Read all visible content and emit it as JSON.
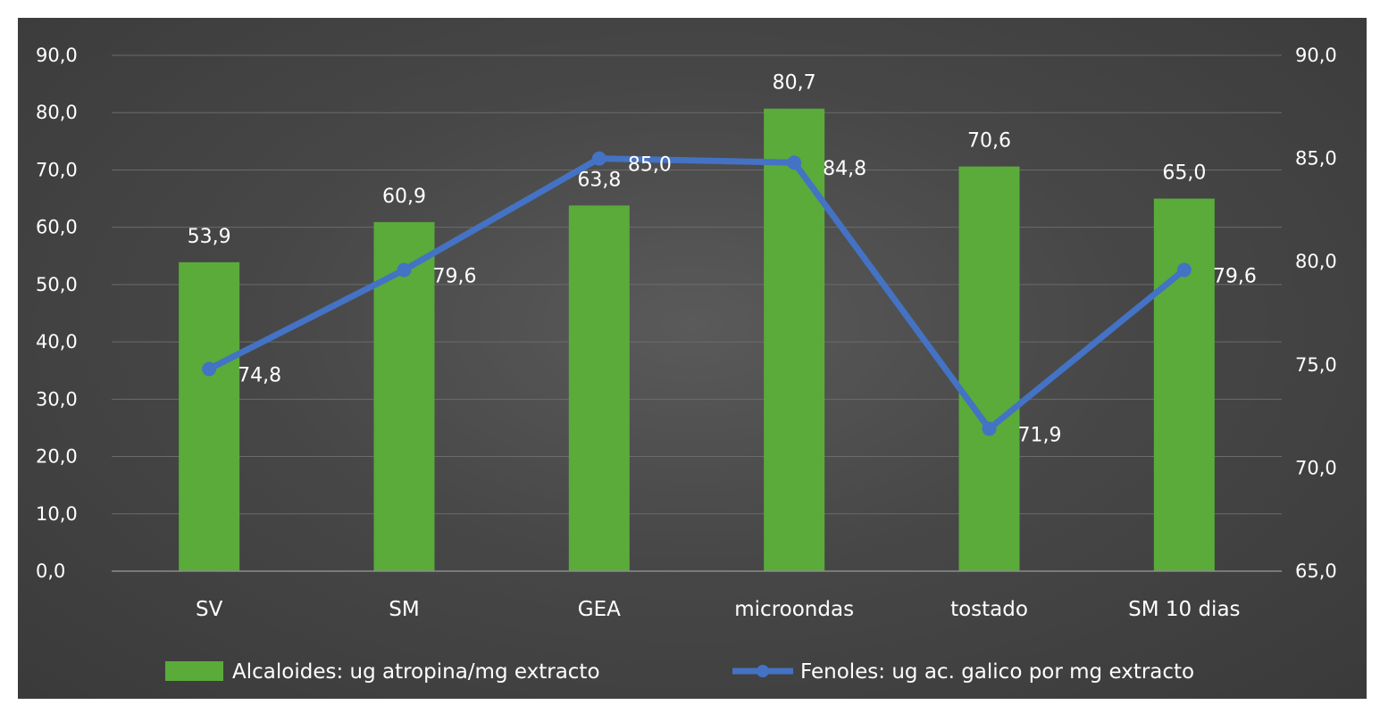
{
  "chart_data": {
    "type": "bar+line",
    "categories": [
      "SV",
      "SM",
      "GEA",
      "microondas",
      "tostado",
      "SM  10 dias"
    ],
    "series": [
      {
        "name": "Alcaloides: ug atropina/mg extracto",
        "type": "bar",
        "axis": "left",
        "color": "#5aab3a",
        "values": [
          53.9,
          60.9,
          63.8,
          80.7,
          70.6,
          65.0
        ],
        "labels": [
          "53,9",
          "60,9",
          "63,8",
          "80,7",
          "70,6",
          "65,0"
        ]
      },
      {
        "name": "Fenoles: ug ac. galico por mg extracto",
        "type": "line",
        "axis": "right",
        "color": "#4472c4",
        "values": [
          74.8,
          79.6,
          85.0,
          84.8,
          71.9,
          79.6
        ],
        "labels": [
          "74,8",
          "79,6",
          "85,0",
          "84,8",
          "71,9",
          "79,6"
        ]
      }
    ],
    "y_left": {
      "ylim": [
        0,
        90
      ],
      "ticks": [
        "0,0",
        "10,0",
        "20,0",
        "30,0",
        "40,0",
        "50,0",
        "60,0",
        "70,0",
        "80,0",
        "90,0"
      ]
    },
    "y_right": {
      "ylim": [
        65,
        90
      ],
      "ticks": [
        "65,0",
        "70,0",
        "75,0",
        "80,0",
        "85,0",
        "90,0"
      ]
    },
    "grid": true,
    "legend_position": "bottom",
    "background_color": "#444444"
  }
}
